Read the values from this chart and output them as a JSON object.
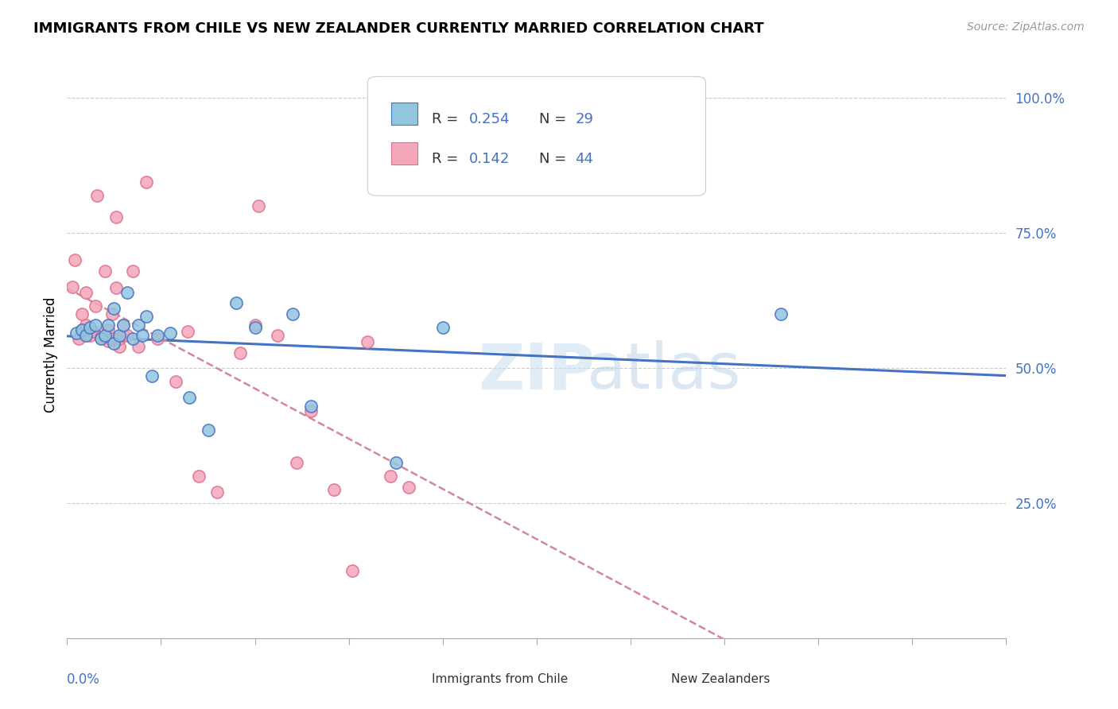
{
  "title": "IMMIGRANTS FROM CHILE VS NEW ZEALANDER CURRENTLY MARRIED CORRELATION CHART",
  "source": "Source: ZipAtlas.com",
  "ylabel": "Currently Married",
  "xlim": [
    0.0,
    0.5
  ],
  "ylim": [
    0.0,
    1.05
  ],
  "color_chile": "#92c5de",
  "color_nz": "#f4a7b9",
  "trendline_chile_color": "#4472c4",
  "trendline_nz_color": "#d4879a",
  "scatter_chile_x": [
    0.005,
    0.008,
    0.01,
    0.012,
    0.015,
    0.018,
    0.02,
    0.022,
    0.025,
    0.025,
    0.028,
    0.03,
    0.032,
    0.035,
    0.038,
    0.04,
    0.042,
    0.045,
    0.048,
    0.055,
    0.065,
    0.075,
    0.09,
    0.1,
    0.12,
    0.13,
    0.175,
    0.2,
    0.38
  ],
  "scatter_chile_y": [
    0.565,
    0.57,
    0.56,
    0.575,
    0.58,
    0.555,
    0.56,
    0.58,
    0.545,
    0.61,
    0.56,
    0.58,
    0.64,
    0.555,
    0.58,
    0.56,
    0.595,
    0.485,
    0.56,
    0.565,
    0.445,
    0.385,
    0.62,
    0.575,
    0.6,
    0.43,
    0.325,
    0.575,
    0.6
  ],
  "scatter_nz_x": [
    0.003,
    0.004,
    0.006,
    0.008,
    0.008,
    0.01,
    0.01,
    0.012,
    0.014,
    0.015,
    0.016,
    0.018,
    0.02,
    0.02,
    0.022,
    0.022,
    0.024,
    0.024,
    0.026,
    0.026,
    0.028,
    0.028,
    0.03,
    0.03,
    0.032,
    0.035,
    0.038,
    0.042,
    0.048,
    0.058,
    0.064,
    0.07,
    0.08,
    0.092,
    0.1,
    0.102,
    0.112,
    0.122,
    0.13,
    0.142,
    0.152,
    0.16,
    0.172,
    0.182
  ],
  "scatter_nz_y": [
    0.65,
    0.7,
    0.555,
    0.57,
    0.6,
    0.58,
    0.64,
    0.56,
    0.568,
    0.615,
    0.82,
    0.558,
    0.558,
    0.68,
    0.55,
    0.57,
    0.555,
    0.6,
    0.648,
    0.78,
    0.54,
    0.555,
    0.56,
    0.58,
    0.56,
    0.68,
    0.54,
    0.845,
    0.555,
    0.475,
    0.568,
    0.3,
    0.27,
    0.528,
    0.58,
    0.8,
    0.56,
    0.325,
    0.42,
    0.275,
    0.125,
    0.548,
    0.3,
    0.28
  ]
}
